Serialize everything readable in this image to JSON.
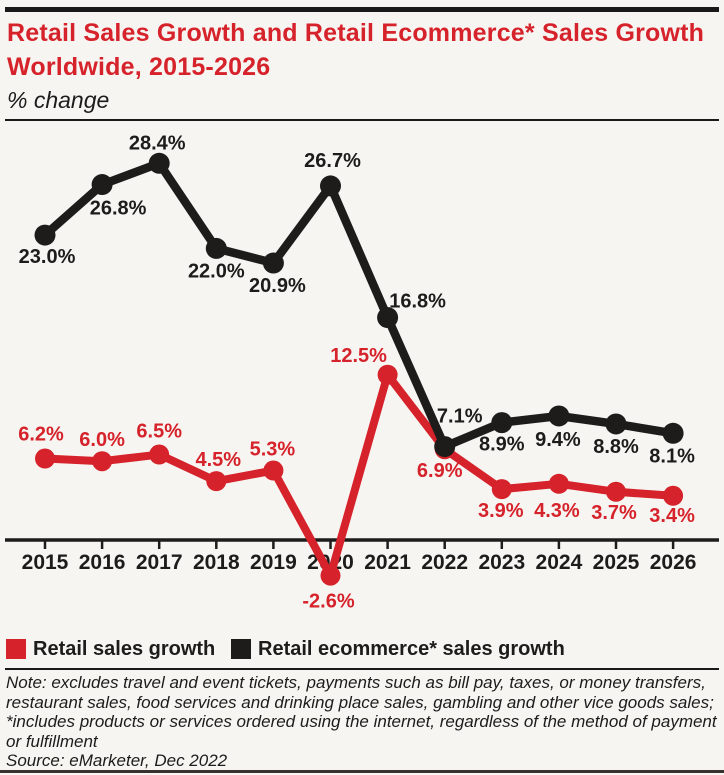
{
  "header": {
    "title": "Retail Sales Growth and Retail Ecommerce* Sales Growth Worldwide, 2015-2026",
    "subtitle": "% change"
  },
  "chart_data": {
    "type": "line",
    "categories": [
      "2015",
      "2016",
      "2017",
      "2018",
      "2019",
      "2020",
      "2021",
      "2022",
      "2023",
      "2024",
      "2025",
      "2026"
    ],
    "series": [
      {
        "name": "Retail sales growth",
        "color": "#d6222a",
        "values": [
          6.2,
          6.0,
          6.5,
          4.5,
          5.3,
          -2.6,
          12.5,
          6.9,
          3.9,
          4.3,
          3.7,
          3.4
        ]
      },
      {
        "name": "Retail ecommerce* sales growth",
        "color": "#1d1c1a",
        "values": [
          23.0,
          26.8,
          28.4,
          22.0,
          20.9,
          26.7,
          16.8,
          7.1,
          8.9,
          9.4,
          8.8,
          8.1
        ]
      }
    ],
    "value_label_format": "{value}%",
    "title": "Retail Sales Growth and Retail Ecommerce* Sales Growth Worldwide, 2015-2026",
    "xlabel": "",
    "ylabel": "% change",
    "ylim": [
      -4,
      30
    ],
    "grid": false,
    "legend_position": "bottom",
    "data_labels": true
  },
  "colors": {
    "accent_red": "#d6222a",
    "ink": "#1d1c1a",
    "background": "#f7f5f2"
  },
  "footer": {
    "note": "Note: excludes travel and event tickets, payments such as bill pay, taxes, or money transfers, restaurant sales, food services and drinking place sales, gambling and other vice goods sales; *includes products or services ordered using the internet, regardless of the method of payment or fulfillment",
    "source": "Source: eMarketer, Dec 2022"
  }
}
